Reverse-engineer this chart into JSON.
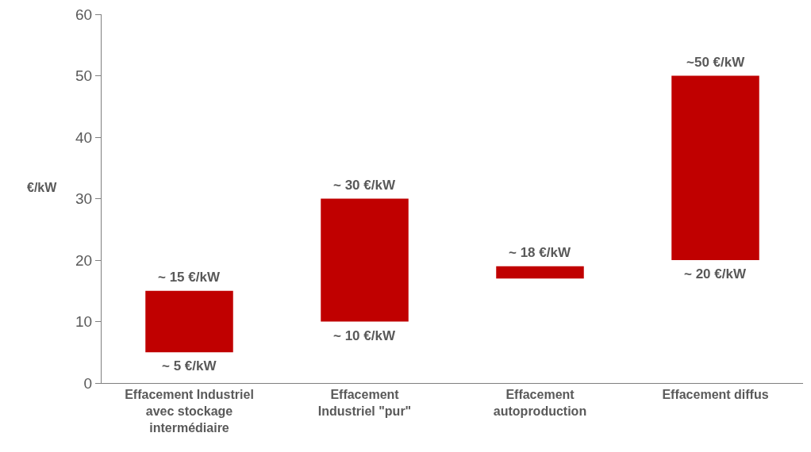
{
  "chart_data": {
    "type": "bar",
    "ylabel": "€/kW",
    "categories": [
      "Effacement Industriel\navec stockage\nintermédiaire",
      "Effacement\nIndustriel \"pur\"",
      "Effacement\nautoproduction",
      "Effacement diffus"
    ],
    "base": [
      5,
      10,
      17,
      20
    ],
    "values": [
      10,
      20,
      2,
      30
    ],
    "color": "#c00000",
    "ylim": [
      0,
      60
    ],
    "yticks": [
      0,
      10,
      20,
      30,
      40,
      50,
      60
    ],
    "grid": false,
    "legend": false,
    "annotations": [
      {
        "text": "~ 15 €/kW",
        "x": "Effacement Industriel\navec stockage\nintermédiaire",
        "y": 15
      },
      {
        "text": "~ 5 €/kW",
        "x": "Effacement Industriel\navec stockage\nintermédiaire",
        "y": 5
      },
      {
        "text": "~ 30 €/kW",
        "x": "Effacement\nIndustriel \"pur\"",
        "y": 30
      },
      {
        "text": "~ 10 €/kW",
        "x": "Effacement\nIndustriel \"pur\"",
        "y": 10
      },
      {
        "text": "~ 18 €/kW",
        "x": "Effacement\nautoproduction",
        "y": 19
      },
      {
        "text": "~50 €/kW",
        "x": "Effacement diffus",
        "y": 50
      },
      {
        "text": "~ 20 €/kW",
        "x": "Effacement diffus",
        "y": 20
      }
    ]
  }
}
